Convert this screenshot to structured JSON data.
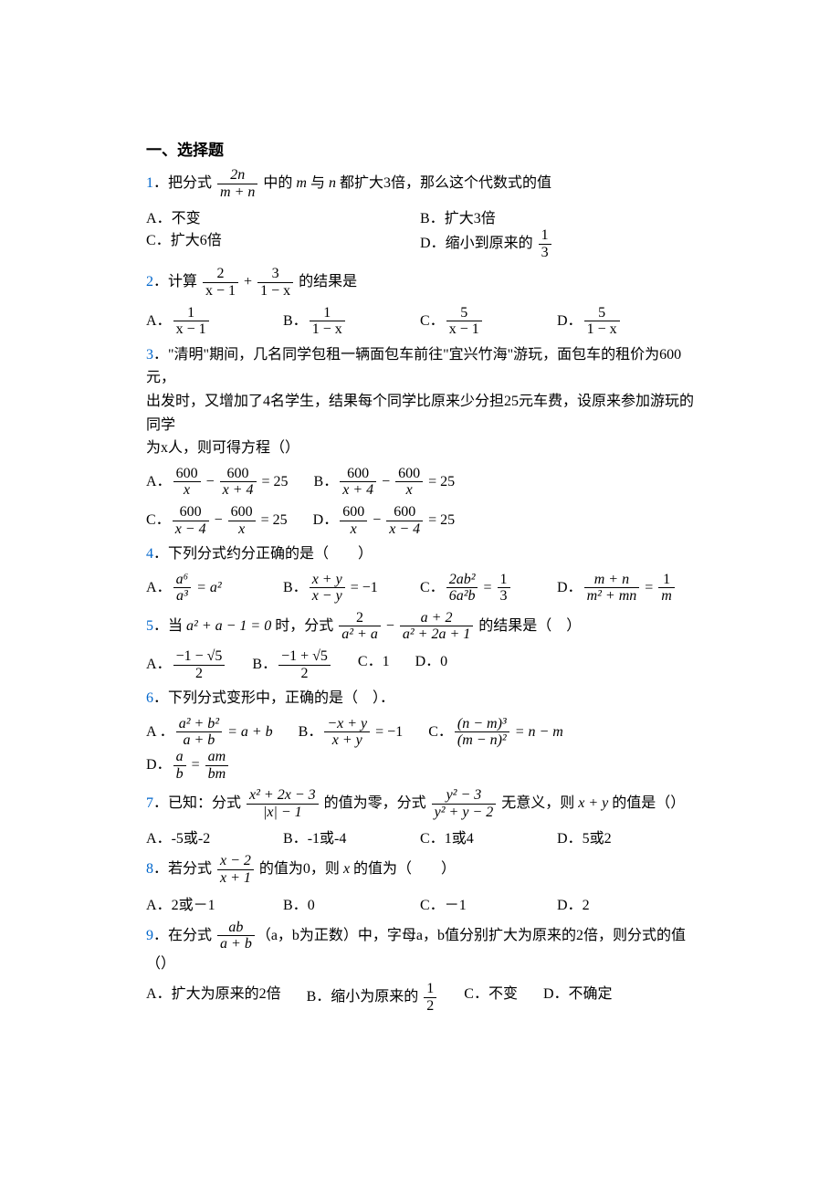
{
  "colors": {
    "blue": "#0066cc",
    "text": "#000000",
    "bg": "#ffffff"
  },
  "font": {
    "body_family": "SimSun",
    "math_family": "Times New Roman",
    "size_pt": 12
  },
  "section_title": "一、选择题",
  "q1": {
    "num": "1",
    "prefix": "．把分式 ",
    "frac_num": "2n",
    "frac_den": "m + n",
    "mid": " 中的 ",
    "m": "m",
    "and": " 与 ",
    "n": "n",
    "suffix": " 都扩大3倍，那么这个代数式的值",
    "A_lbl": "A．",
    "A": "不变",
    "B_lbl": "B．",
    "B": "扩大3倍",
    "C_lbl": "C．",
    "C": "扩大6倍",
    "D_lbl": "D．",
    "D_prefix": "缩小到原来的 ",
    "D_frac_num": "1",
    "D_frac_den": "3"
  },
  "q2": {
    "num": "2",
    "prefix": "．计算 ",
    "t1_num": "2",
    "t1_den": "x − 1",
    "plus": " + ",
    "t2_num": "3",
    "t2_den": "1 − x",
    "suffix": " 的结果是",
    "A_lbl": "A．",
    "A_num": "1",
    "A_den": "x − 1",
    "B_lbl": "B．",
    "B_num": "1",
    "B_den": "1 − x",
    "C_lbl": "C．",
    "C_num": "5",
    "C_den": "x − 1",
    "D_lbl": "D．",
    "D_num": "5",
    "D_den": "1 − x"
  },
  "q3": {
    "num": "3",
    "text1": "．\"清明\"期间，几名同学包租一辆面包车前往\"宜兴竹海\"游玩，面包车的租价为600元，",
    "text2": "出发时，又增加了4名学生，结果每个同学比原来少分担25元车费，设原来参加游玩的同学",
    "text3": "为x人，则可得方程（）",
    "A_lbl": "A．",
    "A_l_num": "600",
    "A_l_den": "x",
    "A_minus": " − ",
    "A_r_num": "600",
    "A_r_den": "x + 4",
    "A_eq": " = 25",
    "B_lbl": "B．",
    "B_l_num": "600",
    "B_l_den": "x + 4",
    "B_minus": " − ",
    "B_r_num": "600",
    "B_r_den": "x",
    "B_eq": " = 25",
    "C_lbl": "C．",
    "C_l_num": "600",
    "C_l_den": "x − 4",
    "C_minus": " − ",
    "C_r_num": "600",
    "C_r_den": "x",
    "C_eq": " = 25",
    "D_lbl": "D．",
    "D_l_num": "600",
    "D_l_den": "x",
    "D_minus": " − ",
    "D_r_num": "600",
    "D_r_den": "x − 4",
    "D_eq": " = 25"
  },
  "q4": {
    "num": "4",
    "text": "．下列分式约分正确的是（　　）",
    "A_lbl": "A．",
    "A_num": "a⁶",
    "A_den": "a³",
    "A_rhs": " = a²",
    "B_lbl": "B．",
    "B_num": "x + y",
    "B_den": "x − y",
    "B_rhs": " = −1",
    "C_lbl": "C．",
    "C_num": "2ab²",
    "C_den": "6a²b",
    "C_rhs_num": "1",
    "C_rhs_den": "3",
    "C_eq": " = ",
    "D_lbl": "D．",
    "D_num": "m + n",
    "D_den": "m² + mn",
    "D_eq": " = ",
    "D_rhs_num": "1",
    "D_rhs_den": "m"
  },
  "q5": {
    "num": "5",
    "prefix": "．当 ",
    "cond": "a² + a − 1 = 0",
    "mid": " 时，分式 ",
    "t1_num": "2",
    "t1_den": "a² + a",
    "minus": " − ",
    "t2_num": "a + 2",
    "t2_den": "a² + 2a + 1",
    "suffix": " 的结果是（　）",
    "A_lbl": "A．",
    "A_num": "−1 − √5",
    "A_den": "2",
    "B_lbl": "B．",
    "B_num": "−1 + √5",
    "B_den": "2",
    "C_lbl": "C．",
    "C": "1",
    "D_lbl": "D．",
    "D": "0"
  },
  "q6": {
    "num": "6",
    "text": "．下列分式变形中，正确的是（　）．",
    "A_lbl": "A ．",
    "A_num": "a² + b²",
    "A_den": "a + b",
    "A_rhs": " = a + b",
    "B_lbl": "B．",
    "B_num": "−x + y",
    "B_den": "x + y",
    "B_rhs": " = −1",
    "C_lbl": "C．",
    "C_num": "(n − m)³",
    "C_den": "(m − n)²",
    "C_rhs": " = n − m",
    "D_lbl": "D．",
    "D_l_num": "a",
    "D_l_den": "b",
    "D_eq": " = ",
    "D_r_num": "am",
    "D_r_den": "bm"
  },
  "q7": {
    "num": "7",
    "prefix": "．已知：分式 ",
    "t1_num": "x² + 2x − 3",
    "t1_den": "|x| − 1",
    "mid1": " 的值为零，分式 ",
    "t2_num": "y² − 3",
    "t2_den": "y² + y − 2",
    "mid2": " 无意义，则 ",
    "xy": "x + y",
    "suffix": " 的值是（）",
    "A_lbl": "A．",
    "A": "-5或-2",
    "B_lbl": "B．",
    "B": "-1或-4",
    "C_lbl": "C．",
    "C": "1或4",
    "D_lbl": "D．",
    "D": "5或2"
  },
  "q8": {
    "num": "8",
    "prefix": "．若分式 ",
    "num1": "x − 2",
    "den1": "x + 1",
    "mid": " 的值为0，则 ",
    "x": "x",
    "suffix": " 的值为（　　）",
    "A_lbl": "A．",
    "A": "2或－1",
    "B_lbl": "B．",
    "B": "0",
    "C_lbl": "C．",
    "C": "－1",
    "D_lbl": "D．",
    "D": "2"
  },
  "q9": {
    "num": "9",
    "prefix": "．在分式 ",
    "num1": "ab",
    "den1": "a + b",
    "suffix": "（a，b为正数）中，字母a，b值分别扩大为原来的2倍，则分式的值（）",
    "A_lbl": "A．",
    "A": "扩大为原来的2倍",
    "B_lbl": "B．",
    "B_prefix": "缩小为原来的 ",
    "B_num": "1",
    "B_den": "2",
    "C_lbl": "C．",
    "C": "不变",
    "D_lbl": "D．",
    "D": "不确定"
  }
}
